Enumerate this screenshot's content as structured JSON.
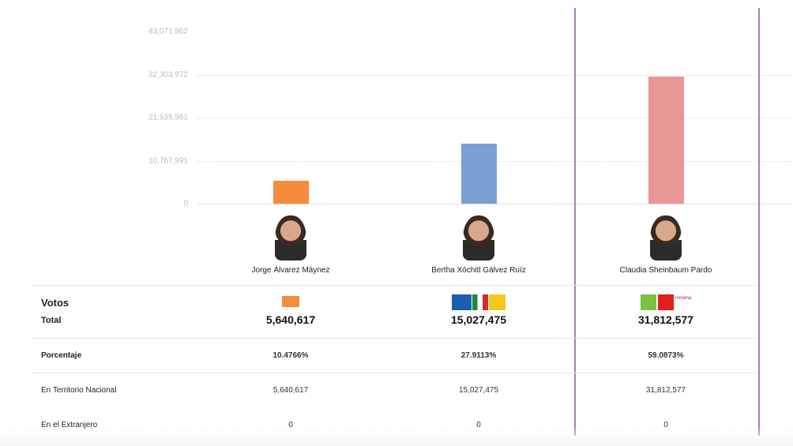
{
  "chart_data": {
    "type": "bar",
    "categories": [
      "Jorge Álvarez Máynez",
      "Bertha Xóchitl Gálvez Ruíz",
      "Claudia Sheinbaum Pardo"
    ],
    "values": [
      5640617,
      15027475,
      31812577
    ],
    "colors": [
      "#f58b3c",
      "#7a9fd2",
      "#e99696"
    ],
    "yticks": [
      "0",
      "10,767,991",
      "21,535,981",
      "32,303,972",
      "43,071,962"
    ],
    "ytick_values": [
      0,
      10767991,
      21535981,
      32303972,
      43071962
    ],
    "ylim": [
      0,
      43071962
    ],
    "grid": true,
    "highlight_index": 2,
    "highlight_color": "#b07bbf"
  },
  "table": {
    "votos_label": "Votos",
    "total_label": "Total",
    "porcentaje_label": "Porcentaje",
    "nacional_label": "En Territorio Nacional",
    "extranjero_label": "En el Extranjero",
    "candidates": [
      {
        "name": "Jorge Álvarez Máynez",
        "total": "5,640,617",
        "porcentaje": "10.4766%",
        "nacional": "5,640,617",
        "extranjero": "0",
        "logo": "mc-logo"
      },
      {
        "name": "Bertha Xóchitl Gálvez Ruíz",
        "total": "15,027,475",
        "porcentaje": "27.9113%",
        "nacional": "15,027,475",
        "extranjero": "0",
        "logo": "pan-pri-prd-logo"
      },
      {
        "name": "Claudia Sheinbaum Pardo",
        "total": "31,812,577",
        "porcentaje": "59.0873%",
        "nacional": "31,812,577",
        "extranjero": "0",
        "logo": "pvem-pt-morena-logo"
      }
    ]
  }
}
